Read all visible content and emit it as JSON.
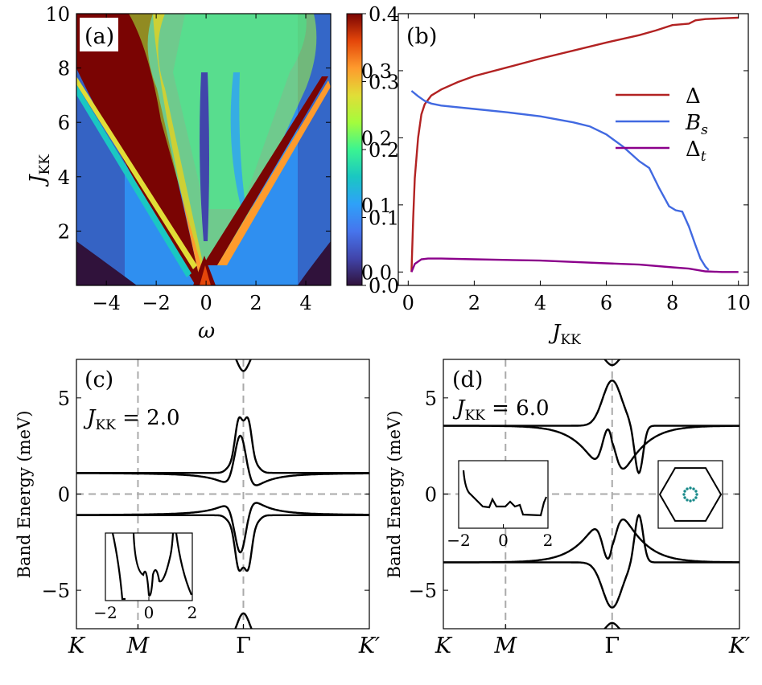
{
  "chart_data": [
    {
      "id": "a",
      "type": "heatmap",
      "panel_label": "(a)",
      "xlabel": "ω",
      "ylabel": "J_KK",
      "xlim": [
        -5.2,
        5.0
      ],
      "ylim": [
        0.0,
        10.0
      ],
      "xticks": [
        -4,
        -2,
        0,
        2,
        4
      ],
      "xtick_labels": [
        "−4",
        "−2",
        "0",
        "2",
        "4"
      ],
      "yticks": [
        2,
        4,
        6,
        8,
        10
      ],
      "ytick_labels": [
        "2",
        "4",
        "6",
        "8",
        "10"
      ],
      "colorbar": {
        "vmin": 0.0,
        "vmax": 0.4,
        "ticks": [
          0.0,
          0.1,
          0.2,
          0.3,
          0.4
        ],
        "tick_labels": [
          "0.0",
          "0.1",
          "0.2",
          "0.3",
          "0.4"
        ],
        "colormap": "turbo"
      },
      "features": {
        "cone_apex": [
          0.0,
          0.0
        ],
        "cone_slope": 0.53,
        "saturated_region": "inside cone and left of ω=-1 above J_KK≈6",
        "background_value": 0.08
      }
    },
    {
      "id": "b",
      "type": "line",
      "panel_label": "(b)",
      "xlabel": "J_KK",
      "ylabel": "",
      "xlim": [
        -0.3,
        10.3
      ],
      "ylim": [
        -0.02,
        0.385
      ],
      "xticks": [
        0,
        2,
        4,
        6,
        8,
        10
      ],
      "xtick_labels": [
        "0",
        "2",
        "4",
        "6",
        "8",
        "10"
      ],
      "yticks": [
        0.0,
        0.1,
        0.2,
        0.3
      ],
      "ytick_labels": [
        "0.0",
        "0.1",
        "0.2",
        "0.3"
      ],
      "legend_position": "right",
      "series": [
        {
          "name": "Δ",
          "color": "#b22222",
          "x": [
            0.1,
            0.15,
            0.2,
            0.3,
            0.4,
            0.5,
            0.7,
            1.0,
            1.5,
            2,
            3,
            4,
            5,
            6,
            7,
            7.5,
            8,
            8.5,
            8.7,
            9,
            9.5,
            10
          ],
          "y": [
            0.0,
            0.08,
            0.14,
            0.2,
            0.235,
            0.25,
            0.263,
            0.272,
            0.283,
            0.292,
            0.305,
            0.318,
            0.33,
            0.342,
            0.353,
            0.36,
            0.368,
            0.37,
            0.375,
            0.377,
            0.378,
            0.379
          ]
        },
        {
          "name": "B_s",
          "color": "#4169e1",
          "x": [
            0.1,
            0.3,
            0.5,
            0.7,
            1,
            2,
            3,
            4,
            5,
            5.5,
            6,
            6.5,
            7,
            7.3,
            7.6,
            7.9,
            8.1,
            8.3,
            8.5,
            8.7,
            8.85,
            9.0,
            9.1
          ],
          "y": [
            0.27,
            0.262,
            0.255,
            0.251,
            0.248,
            0.243,
            0.238,
            0.232,
            0.223,
            0.217,
            0.205,
            0.187,
            0.165,
            0.155,
            0.125,
            0.098,
            0.092,
            0.09,
            0.068,
            0.04,
            0.02,
            0.008,
            0.003
          ]
        },
        {
          "name": "Δ_t",
          "color": "#8b008b",
          "x": [
            0.1,
            0.2,
            0.4,
            0.6,
            1,
            2,
            3,
            4,
            5,
            6,
            7,
            8,
            8.5,
            9,
            9.5,
            10
          ],
          "y": [
            0.0,
            0.012,
            0.019,
            0.02,
            0.02,
            0.019,
            0.018,
            0.017,
            0.015,
            0.013,
            0.011,
            0.007,
            0.005,
            0.001,
            0.0,
            0.0
          ]
        }
      ]
    },
    {
      "id": "c",
      "type": "line",
      "panel_label": "(c)",
      "annotation": "J_KK = 2.0",
      "ylabel": "Band Energy (meV)",
      "ylim": [
        -7,
        7
      ],
      "yticks": [
        -5,
        0,
        5
      ],
      "ytick_labels": [
        "−5",
        "0",
        "5"
      ],
      "k_labels": [
        "K",
        "M",
        "Γ",
        "K′"
      ],
      "k_positions": [
        0.0,
        0.21,
        0.57,
        1.0
      ],
      "bands": {
        "flat_energy": 1.1,
        "peak": 4.3,
        "center": 0.57,
        "dirac_center": 0.0
      },
      "inset": {
        "type": "line",
        "xticks": [
          "−2",
          "0",
          "2"
        ],
        "xlim": [
          -2,
          2
        ]
      }
    },
    {
      "id": "d",
      "type": "line",
      "panel_label": "(d)",
      "annotation": "J_KK = 6.0",
      "ylabel": "Band Energy (meV)",
      "ylim": [
        -7,
        7
      ],
      "yticks": [
        -5,
        0,
        5
      ],
      "ytick_labels": [
        "−5",
        "0",
        "5"
      ],
      "k_labels": [
        "K",
        "M",
        "Γ",
        "K′"
      ],
      "k_positions": [
        0.0,
        0.21,
        0.57,
        1.0
      ],
      "bands": {
        "flat_energy": 3.55,
        "peak": 5.9,
        "center": 0.57
      },
      "inset": {
        "type": "line",
        "xticks": [
          "−2",
          "0",
          "2"
        ],
        "xlim": [
          -2,
          2
        ]
      },
      "inset_bz": "hexagon with ring of teal points around center"
    }
  ]
}
